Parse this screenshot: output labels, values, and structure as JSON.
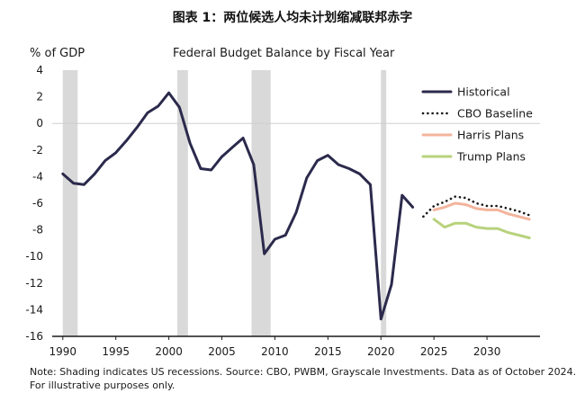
{
  "figure_title": "图表 1：两位候选人均未计划缩减联邦赤字",
  "note": "Note: Shading indicates US recessions. Source: CBO, PWBM, Grayscale Investments. Data as of October 2024. For illustrative purposes only.",
  "colors": {
    "historical": "#2b2a4c",
    "cbo": "#1a1a1a",
    "harris": "#f2b49c",
    "trump": "#b8d27d",
    "recession": "#d9d9d9"
  },
  "chart_data": {
    "type": "line",
    "title": "Federal Budget Balance by Fiscal Year",
    "ylabel": "% of GDP",
    "xlabel": "",
    "xlim": [
      1989,
      2035
    ],
    "ylim": [
      -16,
      4
    ],
    "yticks": [
      4,
      2,
      0,
      -2,
      -4,
      -6,
      -8,
      -10,
      -12,
      -14,
      -16
    ],
    "xticks": [
      1990,
      1995,
      2000,
      2005,
      2010,
      2015,
      2020,
      2025,
      2030
    ],
    "legend_position": "top-right",
    "recessions": [
      [
        1990.0,
        1991.4
      ],
      [
        2000.8,
        2001.8
      ],
      [
        2007.8,
        2009.6
      ],
      [
        2020.0,
        2020.5
      ]
    ],
    "series": [
      {
        "name": "Historical",
        "style": "solid",
        "points": [
          [
            1990,
            -3.8
          ],
          [
            1991,
            -4.5
          ],
          [
            1992,
            -4.6
          ],
          [
            1993,
            -3.8
          ],
          [
            1994,
            -2.8
          ],
          [
            1995,
            -2.2
          ],
          [
            1996,
            -1.3
          ],
          [
            1997,
            -0.3
          ],
          [
            1998,
            0.8
          ],
          [
            1999,
            1.3
          ],
          [
            2000,
            2.3
          ],
          [
            2001,
            1.2
          ],
          [
            2002,
            -1.5
          ],
          [
            2003,
            -3.4
          ],
          [
            2004,
            -3.5
          ],
          [
            2005,
            -2.5
          ],
          [
            2006,
            -1.8
          ],
          [
            2007,
            -1.1
          ],
          [
            2008,
            -3.1
          ],
          [
            2009,
            -9.8
          ],
          [
            2010,
            -8.7
          ],
          [
            2011,
            -8.4
          ],
          [
            2012,
            -6.7
          ],
          [
            2013,
            -4.1
          ],
          [
            2014,
            -2.8
          ],
          [
            2015,
            -2.4
          ],
          [
            2016,
            -3.1
          ],
          [
            2017,
            -3.4
          ],
          [
            2018,
            -3.8
          ],
          [
            2019,
            -4.6
          ],
          [
            2020,
            -14.7
          ],
          [
            2021,
            -12.1
          ],
          [
            2022,
            -5.4
          ],
          [
            2023,
            -6.3
          ]
        ]
      },
      {
        "name": "CBO Baseline",
        "style": "dotted",
        "points": [
          [
            2024,
            -7.0
          ],
          [
            2025,
            -6.2
          ],
          [
            2026,
            -5.9
          ],
          [
            2027,
            -5.5
          ],
          [
            2028,
            -5.6
          ],
          [
            2029,
            -6.0
          ],
          [
            2030,
            -6.2
          ],
          [
            2031,
            -6.2
          ],
          [
            2032,
            -6.4
          ],
          [
            2033,
            -6.6
          ],
          [
            2034,
            -6.9
          ]
        ]
      },
      {
        "name": "Harris Plans",
        "style": "solid",
        "points": [
          [
            2025,
            -6.5
          ],
          [
            2026,
            -6.3
          ],
          [
            2027,
            -6.0
          ],
          [
            2028,
            -6.1
          ],
          [
            2029,
            -6.4
          ],
          [
            2030,
            -6.5
          ],
          [
            2031,
            -6.5
          ],
          [
            2032,
            -6.8
          ],
          [
            2033,
            -7.0
          ],
          [
            2034,
            -7.2
          ]
        ]
      },
      {
        "name": "Trump Plans",
        "style": "solid",
        "points": [
          [
            2025,
            -7.2
          ],
          [
            2026,
            -7.8
          ],
          [
            2027,
            -7.5
          ],
          [
            2028,
            -7.5
          ],
          [
            2029,
            -7.8
          ],
          [
            2030,
            -7.9
          ],
          [
            2031,
            -7.9
          ],
          [
            2032,
            -8.2
          ],
          [
            2033,
            -8.4
          ],
          [
            2034,
            -8.6
          ]
        ]
      }
    ]
  }
}
